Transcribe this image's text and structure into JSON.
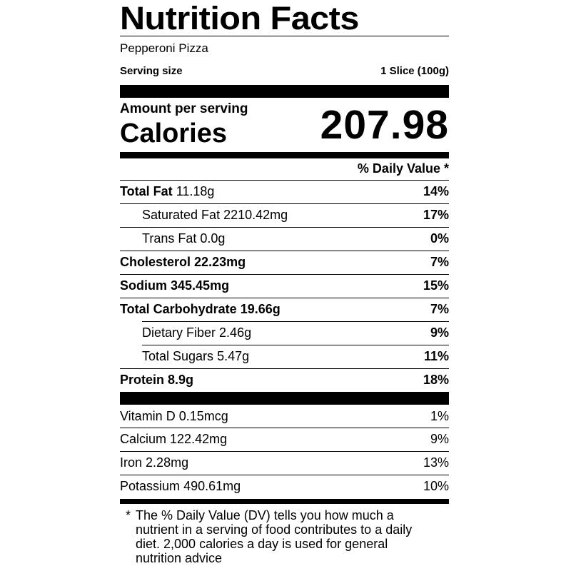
{
  "title": "Nutrition Facts",
  "food_name": "Pepperoni Pizza",
  "serving": {
    "label": "Serving size",
    "value": "1 Slice (100g)"
  },
  "calories": {
    "amount_label": "Amount per serving",
    "label": "Calories",
    "value": "207.98"
  },
  "daily_value_header": "% Daily Value *",
  "nutrients": [
    {
      "name": "Total Fat",
      "amount": "11.18g",
      "dv": "14%"
    },
    {
      "name": "Saturated Fat",
      "amount": "2210.42mg",
      "dv": "17%"
    },
    {
      "name": "Trans Fat",
      "amount": "0.0g",
      "dv": "0%"
    },
    {
      "name": "Cholesterol",
      "amount": "22.23mg",
      "dv": "7%"
    },
    {
      "name": "Sodium",
      "amount": "345.45mg",
      "dv": "15%"
    },
    {
      "name": "Total Carbohydrate",
      "amount": "19.66g",
      "dv": "7%"
    },
    {
      "name": "Dietary Fiber",
      "amount": "2.46g",
      "dv": "9%"
    },
    {
      "name": "Total Sugars",
      "amount": "5.47g",
      "dv": "11%"
    },
    {
      "name": "Protein",
      "amount": "8.9g",
      "dv": "18%"
    }
  ],
  "vitamins": [
    {
      "name": "Vitamin D",
      "amount": "0.15mcg",
      "dv": "1%"
    },
    {
      "name": "Calcium",
      "amount": "122.42mg",
      "dv": "9%"
    },
    {
      "name": "Iron",
      "amount": "2.28mg",
      "dv": "13%"
    },
    {
      "name": "Potassium",
      "amount": "490.61mg",
      "dv": "10%"
    }
  ],
  "footnote": {
    "marker": "*",
    "text": "The % Daily Value (DV) tells you how much a nutrient in a serving of food contributes to a daily diet. 2,000 calories a day is used for general nutrition advice"
  }
}
